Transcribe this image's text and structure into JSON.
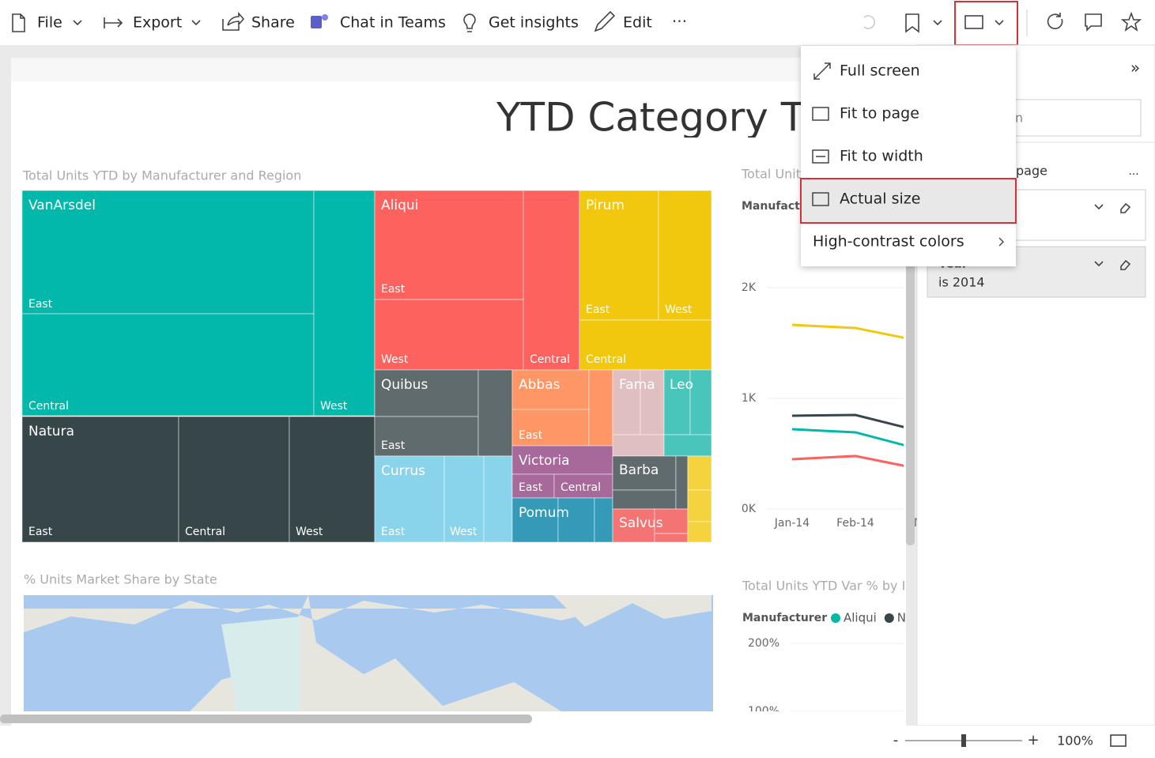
{
  "toolbar": {
    "file": "File",
    "export": "Export",
    "share": "Share",
    "chat": "Chat in Teams",
    "insights": "Get insights",
    "edit": "Edit",
    "more": "⋯"
  },
  "report": {
    "title": "YTD Category Tr"
  },
  "treemap": {
    "title": "Total Units YTD by Manufacturer and Region",
    "labels": [
      "VanArsdel",
      "East",
      "Central",
      "West",
      "Natura",
      "East",
      "Central",
      "West",
      "Aliqui",
      "East",
      "West",
      "Central",
      "Pirum",
      "East",
      "West",
      "Central",
      "Quibus",
      "East",
      "Abbas",
      "East",
      "Fama",
      "Leo",
      "Currus",
      "East",
      "West",
      "Victoria",
      "East",
      "Central",
      "Barba",
      "Pomum",
      "Salvus"
    ]
  },
  "line_chart": {
    "type": "line",
    "title": "Total Unit",
    "legend_title": "Manufactu",
    "x": [
      "Jan-14",
      "Feb-14",
      "M"
    ],
    "ylim": [
      0,
      2000
    ],
    "yticks": [
      {
        "value": 0,
        "label": "0K"
      },
      {
        "value": 1000,
        "label": "1K"
      },
      {
        "value": 2000,
        "label": "2K"
      }
    ],
    "series": [
      {
        "color": "#f2c80f",
        "values": [
          1664,
          1636,
          1521
        ]
      },
      {
        "color": "#374649",
        "values": [
          843,
          850,
          707
        ]
      },
      {
        "color": "#01b8aa",
        "values": [
          721,
          693,
          543
        ]
      },
      {
        "color": "#fd625e",
        "values": [
          450,
          479,
          364
        ]
      }
    ]
  },
  "var_chart": {
    "title": "Total Units YTD Var % by I",
    "legend_title": "Manufacturer",
    "legend": [
      {
        "name": "Aliqui",
        "color": "#01b8aa"
      },
      {
        "name": "N",
        "color": "#374649"
      }
    ],
    "ylim": [
      100,
      200
    ],
    "yticks": [
      {
        "value": 200,
        "label": "200%"
      },
      {
        "value": 100,
        "label": "100%"
      }
    ]
  },
  "map": {
    "title": "% Units Market Share by State"
  },
  "view_menu": {
    "items": [
      "Full screen",
      "Fit to page",
      "Fit to width",
      "Actual size",
      "High-contrast colors"
    ],
    "selected": 3
  },
  "filters": {
    "collapse": "»",
    "search": "n",
    "heading": "page",
    "more": "...",
    "filter_name": "Year",
    "filter_value": "is 2014"
  },
  "status": {
    "zoom_out": "-",
    "zoom_in": "+",
    "zoom": "100%"
  }
}
